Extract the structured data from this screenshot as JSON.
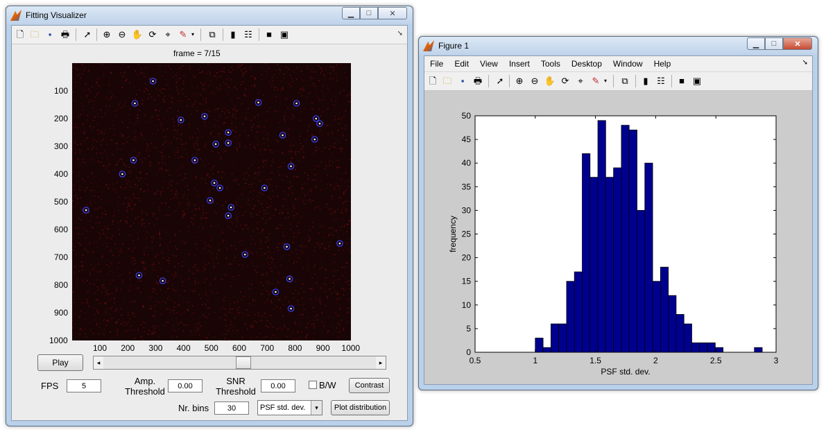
{
  "left_window": {
    "title": "Fitting Visualizer",
    "frame_label": "frame =  7/15",
    "image_axis": {
      "y_ticks": [
        "100",
        "200",
        "300",
        "400",
        "500",
        "600",
        "700",
        "800",
        "900",
        "1000"
      ],
      "x_ticks": [
        "100",
        "200",
        "300",
        "400",
        "500",
        "600",
        "700",
        "800",
        "900",
        "1000"
      ],
      "spots": [
        [
          290,
          65
        ],
        [
          225,
          145
        ],
        [
          668,
          142
        ],
        [
          805,
          145
        ],
        [
          475,
          192
        ],
        [
          390,
          205
        ],
        [
          875,
          200
        ],
        [
          888,
          218
        ],
        [
          560,
          250
        ],
        [
          755,
          260
        ],
        [
          515,
          292
        ],
        [
          560,
          288
        ],
        [
          870,
          275
        ],
        [
          220,
          350
        ],
        [
          440,
          350
        ],
        [
          785,
          372
        ],
        [
          180,
          400
        ],
        [
          510,
          432
        ],
        [
          530,
          450
        ],
        [
          690,
          450
        ],
        [
          495,
          495
        ],
        [
          570,
          520
        ],
        [
          560,
          550
        ],
        [
          50,
          530
        ],
        [
          960,
          650
        ],
        [
          770,
          662
        ],
        [
          620,
          690
        ],
        [
          240,
          765
        ],
        [
          325,
          785
        ],
        [
          780,
          778
        ],
        [
          730,
          825
        ],
        [
          785,
          885
        ]
      ]
    },
    "controls": {
      "play_label": "Play",
      "fps_label": "FPS",
      "fps_value": "5",
      "amp_label_1": "Amp.",
      "amp_label_2": "Threshold",
      "amp_value": "0.00",
      "snr_label_1": "SNR",
      "snr_label_2": "Threshold",
      "snr_value": "0.00",
      "bw_label": "B/W",
      "contrast_label": "Contrast",
      "nr_bins_label": "Nr. bins",
      "nr_bins_value": "30",
      "dropdown_value": "PSF std. dev.",
      "plot_distribution_label": "Plot distribution",
      "slider_position": 0.515
    }
  },
  "right_window": {
    "title": "Figure 1",
    "menu": [
      "File",
      "Edit",
      "View",
      "Insert",
      "Tools",
      "Desktop",
      "Window",
      "Help"
    ]
  },
  "colors": {
    "bar_fill": "#00008f",
    "spot_ring": "#3344ff",
    "image_bg": "#1a0506",
    "noise": "#8c1010"
  },
  "chart_data": {
    "type": "bar",
    "xlabel": "PSF std. dev.",
    "ylabel": "frequency",
    "xlim": [
      0.5,
      3
    ],
    "ylim": [
      0,
      50
    ],
    "xticks": [
      "0.5",
      "1",
      "1.5",
      "2",
      "2.5",
      "3"
    ],
    "yticks": [
      "0",
      "5",
      "10",
      "15",
      "20",
      "25",
      "30",
      "35",
      "40",
      "45",
      "50"
    ],
    "bin_width": 0.065,
    "bins": [
      [
        1.0,
        3
      ],
      [
        1.065,
        1
      ],
      [
        1.13,
        6
      ],
      [
        1.195,
        6
      ],
      [
        1.26,
        15
      ],
      [
        1.325,
        17
      ],
      [
        1.39,
        42
      ],
      [
        1.455,
        37
      ],
      [
        1.52,
        49
      ],
      [
        1.585,
        37
      ],
      [
        1.65,
        39
      ],
      [
        1.715,
        48
      ],
      [
        1.78,
        47
      ],
      [
        1.845,
        30
      ],
      [
        1.91,
        40
      ],
      [
        1.975,
        15
      ],
      [
        2.04,
        18
      ],
      [
        2.105,
        12
      ],
      [
        2.17,
        8
      ],
      [
        2.235,
        6
      ],
      [
        2.3,
        2
      ],
      [
        2.365,
        2
      ],
      [
        2.43,
        2
      ],
      [
        2.495,
        1
      ],
      [
        2.82,
        1
      ]
    ]
  }
}
